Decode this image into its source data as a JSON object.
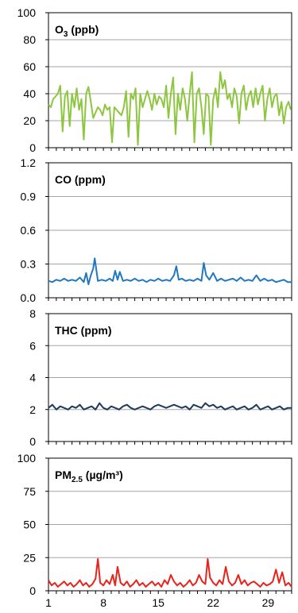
{
  "chart_data": [
    {
      "type": "line",
      "label_main": "O",
      "label_sub": "3",
      "label_rest": " (ppb)",
      "ylim": [
        0,
        100
      ],
      "yticks": [
        "0",
        "20",
        "40",
        "60",
        "80",
        "100"
      ],
      "xlim": [
        1,
        32
      ],
      "color": "#8dc63f",
      "series": [
        {
          "x": [
            1,
            1.3,
            1.6,
            1.9,
            2.2,
            2.5,
            2.8,
            3.1,
            3.4,
            3.7,
            4,
            4.3,
            4.6,
            4.9,
            5.2,
            5.5,
            5.8,
            6.1,
            6.4,
            6.7,
            7,
            7.3,
            7.6,
            7.9,
            8.2,
            8.5,
            8.8,
            9.1,
            9.4,
            9.7,
            10,
            10.3,
            10.6,
            10.9,
            11.2,
            11.5,
            11.8,
            12.1,
            12.4,
            12.7,
            13,
            13.3,
            13.6,
            13.9,
            14.2,
            14.5,
            14.8,
            15.1,
            15.4,
            15.7,
            16,
            16.3,
            16.6,
            16.9,
            17.2,
            17.5,
            17.8,
            18.1,
            18.4,
            18.7,
            19,
            19.3,
            19.6,
            19.9,
            20.2,
            20.5,
            20.8,
            21.1,
            21.4,
            21.7,
            22,
            22.3,
            22.6,
            22.9,
            23.2,
            23.5,
            23.8,
            24.1,
            24.4,
            24.7,
            25,
            25.3,
            25.6,
            25.9,
            26.2,
            26.5,
            26.8,
            27.1,
            27.4,
            27.7,
            28,
            28.3,
            28.6,
            28.9,
            29.2,
            29.5,
            29.8,
            30.1,
            30.4,
            30.7,
            31,
            31.3,
            31.6,
            31.9
          ],
          "y": [
            32,
            30,
            36,
            38,
            40,
            46,
            12,
            38,
            42,
            16,
            40,
            30,
            44,
            28,
            36,
            6,
            40,
            45,
            34,
            22,
            26,
            30,
            28,
            24,
            32,
            28,
            30,
            4,
            30,
            28,
            26,
            24,
            30,
            42,
            8,
            40,
            36,
            44,
            2,
            40,
            30,
            36,
            42,
            36,
            28,
            40,
            32,
            38,
            36,
            30,
            46,
            22,
            40,
            52,
            10,
            40,
            28,
            44,
            36,
            20,
            40,
            56,
            4,
            40,
            44,
            30,
            10,
            40,
            38,
            2,
            36,
            44,
            30,
            56,
            44,
            50,
            36,
            40,
            30,
            44,
            38,
            18,
            40,
            46,
            28,
            38,
            42,
            30,
            44,
            32,
            40,
            46,
            20,
            36,
            44,
            30,
            38,
            40,
            24,
            34,
            18,
            30,
            34,
            28
          ]
        }
      ]
    },
    {
      "type": "line",
      "label_main": "CO (ppm)",
      "label_sub": "",
      "label_rest": "",
      "ylim": [
        0,
        1.2
      ],
      "yticks": [
        "0.0",
        "0.3",
        "0.6",
        "0.9",
        "1.2"
      ],
      "xlim": [
        1,
        32
      ],
      "color": "#1f78c1",
      "series": [
        {
          "x": [
            1,
            1.5,
            2,
            2.5,
            3,
            3.5,
            4,
            4.5,
            5,
            5.5,
            5.8,
            6.1,
            6.4,
            6.7,
            6.9,
            7.3,
            7.8,
            8.3,
            8.8,
            9.2,
            9.5,
            9.8,
            10.1,
            10.5,
            11,
            11.5,
            12,
            12.5,
            13,
            13.5,
            14,
            14.5,
            15,
            15.5,
            16,
            16.5,
            17,
            17.3,
            17.6,
            18,
            18.5,
            19,
            19.5,
            20,
            20.5,
            20.8,
            21.1,
            21.5,
            22,
            22.5,
            23,
            23.5,
            24,
            24.5,
            25,
            25.5,
            26,
            26.5,
            27,
            27.5,
            28,
            28.5,
            29,
            29.5,
            30,
            30.5,
            31,
            31.5,
            32
          ],
          "y": [
            0.15,
            0.14,
            0.16,
            0.15,
            0.17,
            0.15,
            0.16,
            0.15,
            0.18,
            0.14,
            0.22,
            0.12,
            0.2,
            0.26,
            0.35,
            0.15,
            0.16,
            0.15,
            0.17,
            0.15,
            0.24,
            0.16,
            0.23,
            0.15,
            0.16,
            0.15,
            0.17,
            0.15,
            0.16,
            0.14,
            0.16,
            0.15,
            0.17,
            0.15,
            0.16,
            0.15,
            0.2,
            0.28,
            0.16,
            0.17,
            0.15,
            0.16,
            0.15,
            0.17,
            0.15,
            0.31,
            0.2,
            0.16,
            0.22,
            0.15,
            0.17,
            0.15,
            0.16,
            0.17,
            0.15,
            0.18,
            0.15,
            0.16,
            0.15,
            0.2,
            0.15,
            0.17,
            0.15,
            0.16,
            0.14,
            0.15,
            0.16,
            0.14,
            0.14
          ]
        }
      ]
    },
    {
      "type": "line",
      "label_main": "THC (ppm)",
      "label_sub": "",
      "label_rest": "",
      "ylim": [
        0,
        8
      ],
      "yticks": [
        "0",
        "2",
        "4",
        "6",
        "8"
      ],
      "xlim": [
        1,
        32
      ],
      "color": "#1f3b5c",
      "series": [
        {
          "x": [
            1,
            1.5,
            2,
            2.5,
            3,
            3.5,
            4,
            4.5,
            5,
            5.5,
            6,
            6.5,
            7,
            7.5,
            8,
            8.5,
            9,
            9.5,
            10,
            10.5,
            11,
            11.5,
            12,
            12.5,
            13,
            13.5,
            14,
            14.5,
            15,
            15.5,
            16,
            16.5,
            17,
            17.5,
            18,
            18.5,
            19,
            19.5,
            20,
            20.5,
            21,
            21.5,
            22,
            22.5,
            23,
            23.5,
            24,
            24.5,
            25,
            25.5,
            26,
            26.5,
            27,
            27.5,
            28,
            28.5,
            29,
            29.5,
            30,
            30.5,
            31,
            31.5,
            32
          ],
          "y": [
            2.1,
            2.3,
            2.0,
            2.2,
            2.1,
            2.0,
            2.2,
            2.1,
            2.3,
            2.0,
            2.1,
            2.2,
            2.0,
            2.4,
            2.1,
            2.0,
            2.2,
            2.1,
            2.0,
            2.2,
            2.3,
            2.1,
            2.0,
            2.1,
            2.2,
            2.1,
            2.0,
            2.2,
            2.3,
            2.2,
            2.1,
            2.2,
            2.3,
            2.2,
            2.1,
            2.2,
            2.0,
            2.3,
            2.2,
            2.1,
            2.4,
            2.2,
            2.3,
            2.1,
            2.2,
            2.0,
            2.1,
            2.2,
            2.0,
            2.1,
            2.2,
            2.0,
            2.1,
            2.3,
            2.0,
            2.1,
            2.2,
            2.0,
            2.1,
            2.2,
            2.0,
            2.1,
            2.1
          ]
        }
      ]
    },
    {
      "type": "line",
      "label_main": "PM",
      "label_sub": "2.5",
      "label_rest": " (µg/m³)",
      "ylim": [
        0,
        100
      ],
      "yticks": [
        "0",
        "25",
        "50",
        "75",
        "100"
      ],
      "xlim": [
        1,
        32
      ],
      "color": "#e8231a",
      "xticks": [
        "1",
        "8",
        "15",
        "22",
        "29"
      ],
      "xtick_values": [
        1,
        8,
        15,
        22,
        29
      ],
      "series": [
        {
          "x": [
            1,
            1.4,
            1.8,
            2.2,
            2.6,
            3,
            3.4,
            3.8,
            4.2,
            4.6,
            5,
            5.4,
            5.8,
            6.2,
            6.6,
            7,
            7.3,
            7.6,
            8,
            8.4,
            8.8,
            9.2,
            9.5,
            9.8,
            10.2,
            10.6,
            11,
            11.4,
            11.8,
            12.2,
            12.6,
            13,
            13.4,
            13.8,
            14.2,
            14.6,
            15,
            15.4,
            15.8,
            16.2,
            16.6,
            17,
            17.4,
            17.8,
            18.2,
            18.6,
            19,
            19.4,
            19.8,
            20.2,
            20.6,
            21,
            21.3,
            21.6,
            22,
            22.4,
            22.8,
            23.2,
            23.6,
            24,
            24.4,
            24.8,
            25.2,
            25.6,
            26,
            26.4,
            26.8,
            27.2,
            27.6,
            28,
            28.4,
            28.8,
            29.2,
            29.6,
            30,
            30.4,
            30.8,
            31.2,
            31.6,
            32
          ],
          "y": [
            8,
            4,
            6,
            3,
            5,
            7,
            4,
            6,
            3,
            5,
            8,
            4,
            6,
            3,
            5,
            9,
            24,
            6,
            4,
            8,
            5,
            12,
            4,
            18,
            6,
            4,
            7,
            3,
            5,
            8,
            4,
            6,
            3,
            5,
            7,
            4,
            6,
            3,
            8,
            5,
            12,
            7,
            4,
            6,
            3,
            5,
            8,
            4,
            6,
            12,
            7,
            5,
            24,
            10,
            6,
            4,
            8,
            5,
            18,
            7,
            4,
            6,
            12,
            5,
            8,
            4,
            6,
            7,
            5,
            3,
            6,
            4,
            5,
            7,
            16,
            6,
            14,
            4,
            6,
            3
          ]
        }
      ]
    }
  ]
}
